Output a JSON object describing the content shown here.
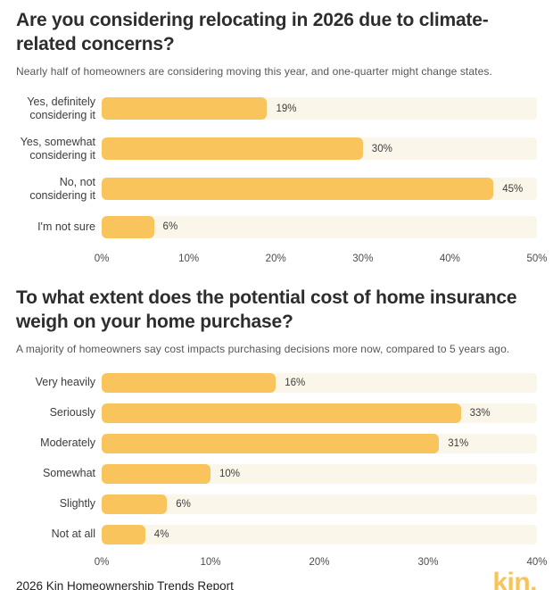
{
  "colors": {
    "bar": "#f9c45c",
    "track": "#faf6ea",
    "title": "#2d2d2d",
    "subtitle": "#565656",
    "logo": "#f8c457"
  },
  "sections": [
    {
      "title": "Are you considering relocating in 2026 due to climate-related concerns?",
      "subtitle": "Nearly half of homeowners are considering moving this year, and one-quarter might change states."
    },
    {
      "title": "To what extent does the potential cost of home insurance weigh on your home purchase?",
      "subtitle": "A majority of homeowners say cost impacts purchasing decisions more now, compared to 5 years ago."
    }
  ],
  "chart_data": [
    {
      "type": "bar",
      "orientation": "horizontal",
      "title": "Are you considering relocating in 2026 due to climate-related concerns?",
      "categories": [
        "Yes, definitely considering it",
        "Yes, somewhat considering it",
        "No, not considering it",
        "I'm not sure"
      ],
      "values": [
        19,
        30,
        45,
        6
      ],
      "value_labels": [
        "19%",
        "30%",
        "45%",
        "6%"
      ],
      "xlim": [
        0,
        50
      ],
      "xticks": [
        {
          "label": "0%",
          "value": 0
        },
        {
          "label": "10%",
          "value": 10
        },
        {
          "label": "20%",
          "value": 20
        },
        {
          "label": "30%",
          "value": 30
        },
        {
          "label": "40%",
          "value": 40
        },
        {
          "label": "50%",
          "value": 50
        }
      ],
      "grid": false,
      "legend": false
    },
    {
      "type": "bar",
      "orientation": "horizontal",
      "title": "To what extent does the potential cost of home insurance weigh on your home purchase?",
      "categories": [
        "Very heavily",
        "Seriously",
        "Moderately",
        "Somewhat",
        "Slightly",
        "Not at all"
      ],
      "values": [
        16,
        33,
        31,
        10,
        6,
        4
      ],
      "value_labels": [
        "16%",
        "33%",
        "31%",
        "10%",
        "6%",
        "4%"
      ],
      "xlim": [
        0,
        40
      ],
      "xticks": [
        {
          "label": "0%",
          "value": 0
        },
        {
          "label": "10%",
          "value": 10
        },
        {
          "label": "20%",
          "value": 20
        },
        {
          "label": "30%",
          "value": 30
        },
        {
          "label": "40%",
          "value": 40
        }
      ],
      "grid": false,
      "legend": false
    }
  ],
  "footer": {
    "report": "2026 Kin Homeownership Trends Report",
    "logo": "kin."
  }
}
